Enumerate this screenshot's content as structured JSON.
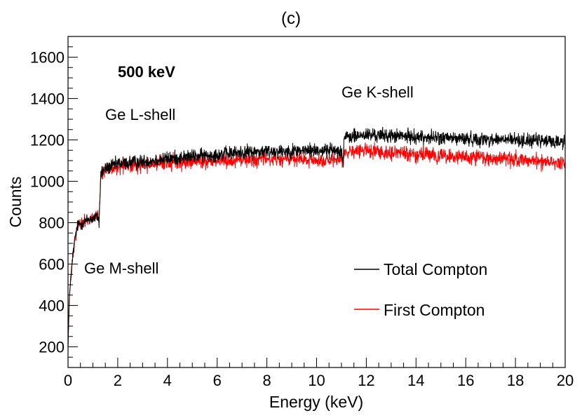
{
  "chart_data": {
    "type": "line",
    "title": "(c)",
    "xlabel": "Energy (keV)",
    "ylabel": "Counts",
    "xlim": [
      0,
      20
    ],
    "ylim": [
      100,
      1700
    ],
    "xticks": [
      0,
      2,
      4,
      6,
      8,
      10,
      12,
      14,
      16,
      18,
      20
    ],
    "yticks": [
      200,
      400,
      600,
      800,
      1000,
      1200,
      1400,
      1600
    ],
    "x_minor_step": 0.5,
    "y_minor_step": 50,
    "grid": false,
    "legend_position": "bottom-right",
    "annotations": {
      "energy": "500 keV",
      "l_shell": "Ge L-shell",
      "k_shell": "Ge K-shell",
      "m_shell": "Ge M-shell"
    },
    "series": [
      {
        "name": "Total Compton",
        "color": "#000000",
        "noise": 32,
        "points": [
          [
            0,
            200
          ],
          [
            0.05,
            420
          ],
          [
            0.1,
            520
          ],
          [
            0.2,
            650
          ],
          [
            0.3,
            740
          ],
          [
            0.4,
            790
          ],
          [
            0.6,
            800
          ],
          [
            0.8,
            815
          ],
          [
            1.0,
            820
          ],
          [
            1.2,
            830
          ],
          [
            1.25,
            800
          ],
          [
            1.32,
            1040
          ],
          [
            1.5,
            1060
          ],
          [
            2.0,
            1085
          ],
          [
            3.0,
            1095
          ],
          [
            4.0,
            1110
          ],
          [
            5.0,
            1120
          ],
          [
            6.0,
            1130
          ],
          [
            7.0,
            1140
          ],
          [
            8.0,
            1145
          ],
          [
            9.0,
            1148
          ],
          [
            10.0,
            1150
          ],
          [
            11.0,
            1150
          ],
          [
            11.08,
            1080
          ],
          [
            11.1,
            1210
          ],
          [
            12.0,
            1225
          ],
          [
            14.0,
            1215
          ],
          [
            16.0,
            1205
          ],
          [
            18.0,
            1200
          ],
          [
            20.0,
            1190
          ]
        ]
      },
      {
        "name": "First Compton",
        "color": "#ff0000",
        "noise": 34,
        "points": [
          [
            0,
            200
          ],
          [
            0.05,
            420
          ],
          [
            0.1,
            520
          ],
          [
            0.2,
            650
          ],
          [
            0.3,
            740
          ],
          [
            0.4,
            790
          ],
          [
            0.6,
            800
          ],
          [
            0.8,
            815
          ],
          [
            1.0,
            820
          ],
          [
            1.2,
            830
          ],
          [
            1.25,
            800
          ],
          [
            1.32,
            1030
          ],
          [
            1.5,
            1050
          ],
          [
            2.0,
            1070
          ],
          [
            3.0,
            1080
          ],
          [
            4.0,
            1090
          ],
          [
            5.0,
            1095
          ],
          [
            6.0,
            1100
          ],
          [
            7.0,
            1105
          ],
          [
            8.0,
            1108
          ],
          [
            9.0,
            1105
          ],
          [
            10.0,
            1100
          ],
          [
            11.0,
            1095
          ],
          [
            11.1,
            1140
          ],
          [
            12.0,
            1150
          ],
          [
            14.0,
            1130
          ],
          [
            16.0,
            1115
          ],
          [
            18.0,
            1105
          ],
          [
            20.0,
            1090
          ]
        ]
      }
    ]
  }
}
